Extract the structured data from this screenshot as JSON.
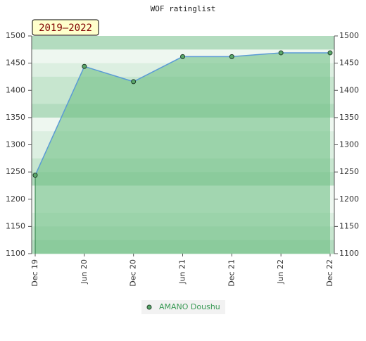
{
  "chart_data": {
    "type": "area",
    "title": "WOF ratinglist",
    "annotation": "2019–2022",
    "categories": [
      "Dec 19",
      "Jun 20",
      "Dec 20",
      "Jun 21",
      "Dec 21",
      "Jun 22",
      "Dec 22"
    ],
    "series": [
      {
        "name": "AMANO Doushu",
        "color": "#5b9bd5",
        "fill": "#6fbf85",
        "values": [
          1244,
          1444,
          1416,
          1462,
          1462,
          1469,
          1469
        ]
      }
    ],
    "ylim": [
      1100,
      1500
    ],
    "yticks": [
      1100,
      1150,
      1200,
      1250,
      1300,
      1350,
      1400,
      1450,
      1500
    ],
    "y2lim": [
      1100,
      1500
    ],
    "y2ticks": [
      1100,
      1150,
      1200,
      1250,
      1300,
      1350,
      1400,
      1450,
      1500
    ]
  }
}
